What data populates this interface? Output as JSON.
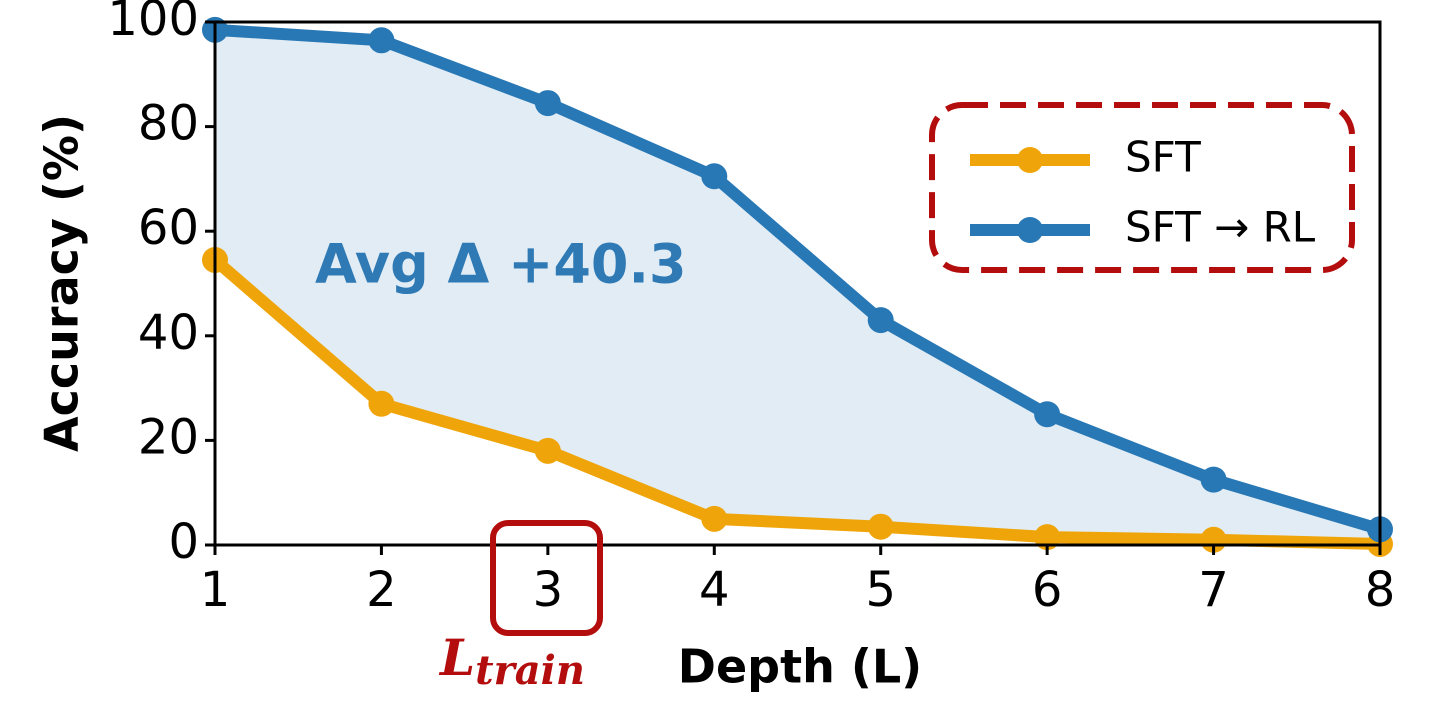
{
  "chart_data": {
    "type": "line",
    "x_label": "Depth (L)",
    "y_label": "Accuracy (%)",
    "annotation": "Avg Δ +40.3",
    "highlight": {
      "base": "L",
      "sub": "train"
    },
    "x": [
      1,
      2,
      3,
      4,
      5,
      6,
      7,
      8
    ],
    "series": [
      {
        "name": "SFT",
        "color": "#efa50a",
        "values": [
          54.5,
          27,
          18,
          5,
          3.5,
          1.5,
          1,
          0.2
        ]
      },
      {
        "name": "SFT → RL",
        "color": "#2878b5",
        "values": [
          98.5,
          96.5,
          84.5,
          70.5,
          43,
          25,
          12.5,
          3
        ]
      }
    ],
    "xlim": [
      1,
      8
    ],
    "xticks": [
      1,
      2,
      3,
      4,
      5,
      6,
      7,
      8
    ],
    "ylim": [
      0,
      100
    ],
    "yticks": [
      0,
      20,
      40,
      60,
      80,
      100
    ],
    "fill_between": true,
    "legend": "upper right"
  }
}
